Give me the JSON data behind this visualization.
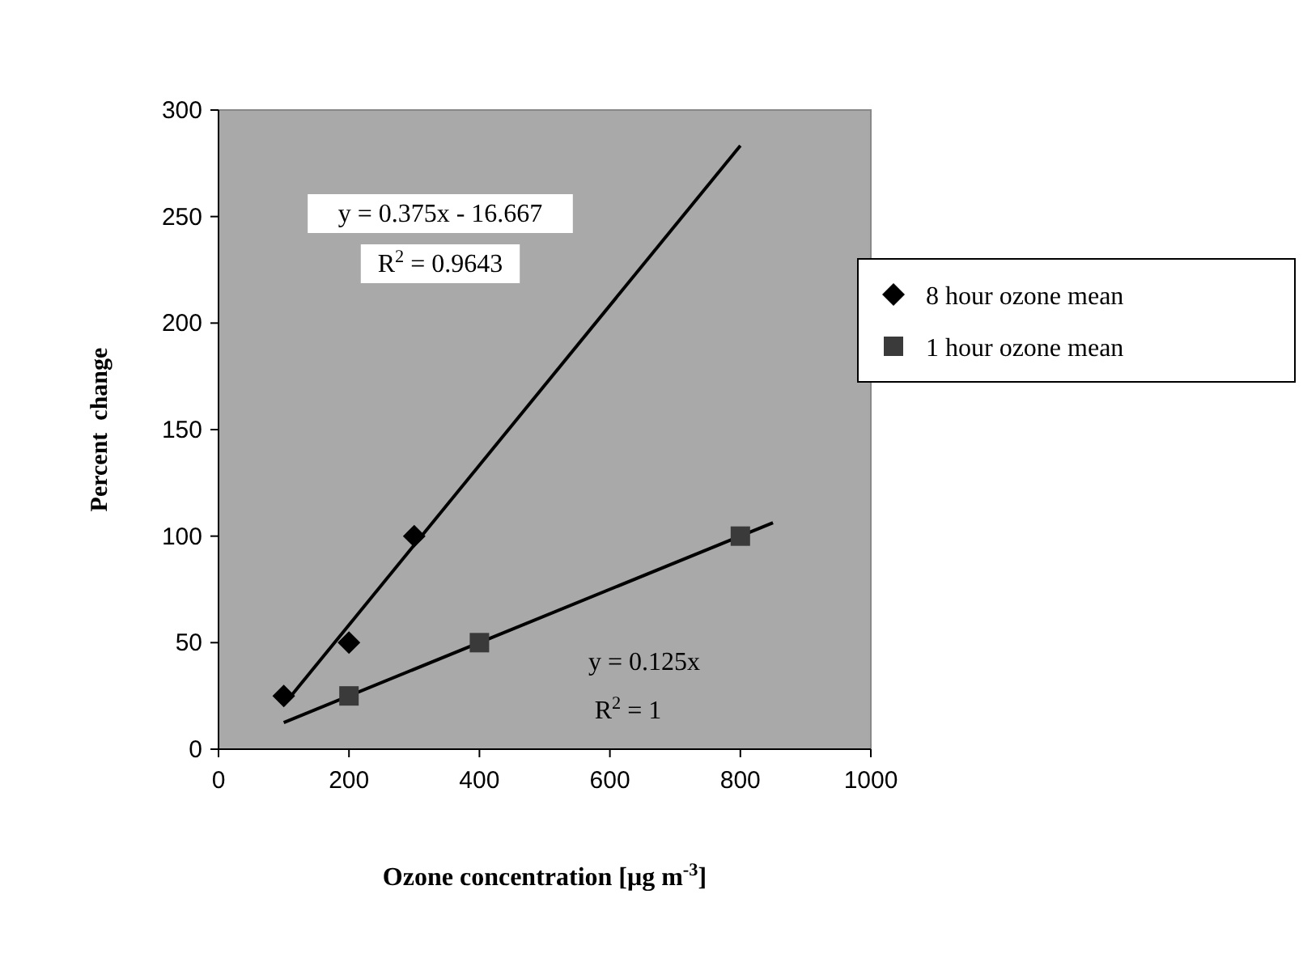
{
  "chart_data": {
    "type": "scatter",
    "xlabel": "Ozone concentration [μg m$^{-3}$]",
    "ylabel": "Percent  change",
    "xlim": [
      0,
      1000
    ],
    "xticks": [
      0,
      200,
      400,
      600,
      800,
      1000
    ],
    "ylim": [
      0,
      300
    ],
    "yticks": [
      0,
      50,
      100,
      150,
      200,
      250,
      300
    ],
    "grid": false,
    "legend": "right",
    "series": [
      {
        "name": "8 hour ozone mean",
        "color": "#000000",
        "marker": "diamond",
        "x": [
          100,
          200,
          300
        ],
        "values": [
          25,
          50,
          100
        ]
      },
      {
        "name": "1 hour ozone mean",
        "color": "#3a3a3a",
        "marker": "square",
        "x": [
          200,
          400,
          800
        ],
        "values": [
          25,
          50,
          100
        ]
      },
      {
        "type": "line",
        "color": "#000000",
        "marker": "none",
        "x": [
          100,
          800
        ],
        "values": [
          20.8,
          283.3
        ]
      },
      {
        "type": "line",
        "color": "#000000",
        "marker": "none",
        "x": [
          100,
          850
        ],
        "values": [
          12.5,
          106.3
        ]
      }
    ],
    "annotations": [
      "y = 0.375x - 16.667",
      "R$^{2}$ = 0.9643",
      "y = 0.125x",
      "R$^{2}$ = 1"
    ]
  }
}
